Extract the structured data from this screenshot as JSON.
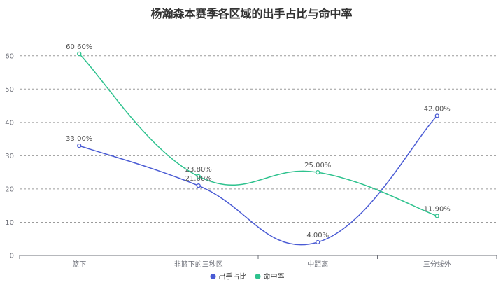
{
  "chart_data": {
    "type": "line",
    "title": "杨瀚森本赛季各区域的出手占比与命中率",
    "categories": [
      "篮下",
      "非篮下的三秒区",
      "中距离",
      "三分线外"
    ],
    "y_ticks": [
      "0",
      "10",
      "20",
      "30",
      "40",
      "50",
      "60"
    ],
    "ylim": [
      0,
      65
    ],
    "grid": true,
    "legend_position": "bottom-center",
    "series": [
      {
        "name": "出手占比",
        "color": "#4a5bd4",
        "values": [
          33.0,
          21.0,
          4.0,
          42.0
        ],
        "labels": [
          "33.00%",
          "21.00%",
          "4.00%",
          "42.00%"
        ]
      },
      {
        "name": "命中率",
        "color": "#2ec28e",
        "values": [
          60.6,
          23.8,
          25.0,
          11.9
        ],
        "labels": [
          "60.60%",
          "23.80%",
          "25.00%",
          "11.90%"
        ]
      }
    ]
  }
}
